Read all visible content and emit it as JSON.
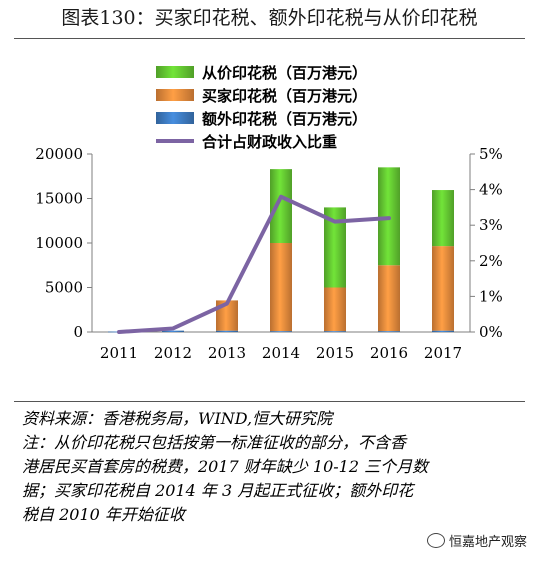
{
  "title": "图表130：买家印花税、额外印花税与从价印花税",
  "footer": {
    "source": "资料来源：香港税务局，WIND,恒大研究院",
    "note_lines": [
      "注：从价印花税只包括按第一标准征收的部分，不含香",
      "港居民买首套房的税费，2017 财年缺少 10-12 三个月数",
      "据；买家印花税自 2014 年 3 月起正式征收；额外印花",
      "税自 2010 年开始征收"
    ]
  },
  "watermark": "恒嘉地产观察",
  "colors": {
    "ad_valorem": "#66cc33",
    "buyer": "#ef8e3e",
    "special": "#3f7fc7",
    "ratio_line": "#7c64a3"
  },
  "chart_data": {
    "type": "bar",
    "stacked": true,
    "categories": [
      "2011",
      "2012",
      "2013",
      "2014",
      "2015",
      "2016",
      "2017"
    ],
    "series": [
      {
        "name": "从价印花税（百万港元）",
        "type": "bar",
        "axis": "left",
        "color": "#66cc33",
        "values": [
          0,
          0,
          0,
          8300,
          9000,
          11000,
          6300
        ]
      },
      {
        "name": "买家印花税（百万港元）",
        "type": "bar",
        "axis": "left",
        "color": "#ef8e3e",
        "values": [
          0,
          0,
          3400,
          9900,
          4900,
          7400,
          9500
        ]
      },
      {
        "name": "额外印花税（百万港元）",
        "type": "bar",
        "axis": "left",
        "color": "#3f7fc7",
        "values": [
          50,
          150,
          150,
          100,
          100,
          100,
          150
        ]
      },
      {
        "name": "合计占财政收入比重",
        "type": "line",
        "axis": "right",
        "color": "#7c64a3",
        "values": [
          0.0,
          0.1,
          0.8,
          3.8,
          3.1,
          3.2,
          null
        ]
      }
    ],
    "y_left": {
      "min": 0,
      "max": 20000,
      "ticks": [
        0,
        5000,
        10000,
        15000,
        20000
      ]
    },
    "y_right": {
      "min": 0,
      "max": 5,
      "ticks": [
        "0%",
        "1%",
        "2%",
        "3%",
        "4%",
        "5%"
      ]
    },
    "legend_position": "top",
    "grid": false
  }
}
